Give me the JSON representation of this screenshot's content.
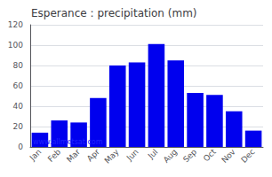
{
  "chart_data": {
    "type": "bar",
    "title": "Esperance : precipitation (mm)",
    "categories": [
      "Jan",
      "Feb",
      "Mar",
      "Apr",
      "May",
      "Jun",
      "Jul",
      "Aug",
      "Sep",
      "Oct",
      "Nov",
      "Dec"
    ],
    "values": [
      14,
      26,
      24,
      48,
      80,
      83,
      101,
      85,
      53,
      51,
      35,
      16
    ],
    "color": "#0000ee",
    "ylim": [
      0,
      120
    ],
    "yticks": [
      0,
      20,
      40,
      60,
      80,
      100,
      120
    ],
    "grid": true,
    "annotations": [
      "www.allmetsat.com"
    ]
  }
}
